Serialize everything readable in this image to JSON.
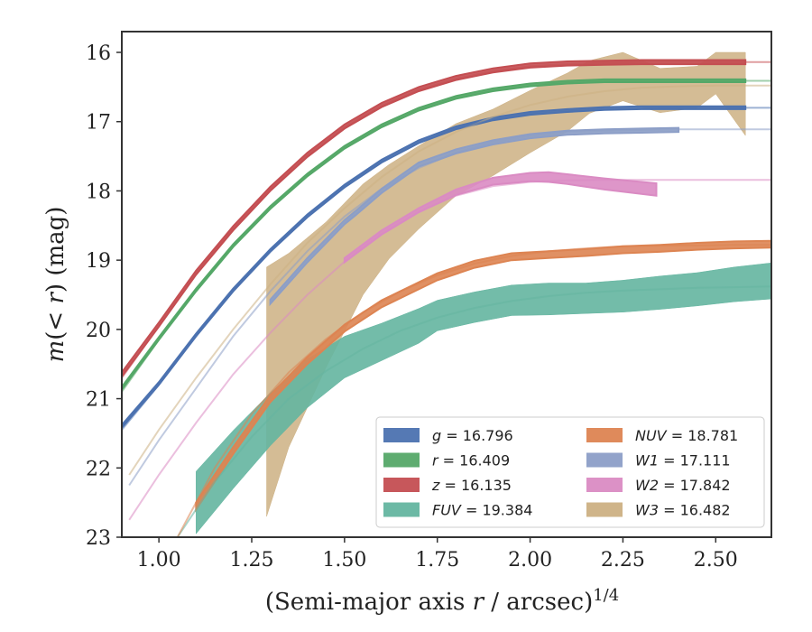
{
  "chart_data": {
    "type": "line",
    "xlabel": "(Semi-major axis r / arcsec)^{1/4}",
    "ylabel": "m(< r) (mag)",
    "xlim": [
      0.9,
      2.65
    ],
    "ylim": [
      23.0,
      15.7
    ],
    "y_inverted": true,
    "x_ticks": [
      "1.00",
      "1.25",
      "1.50",
      "1.75",
      "2.00",
      "2.25",
      "2.50"
    ],
    "y_ticks": [
      "16",
      "17",
      "18",
      "19",
      "20",
      "21",
      "22",
      "23"
    ],
    "grid": false,
    "legend_position": "lower-right",
    "legend": [
      {
        "symbol": "g",
        "value": "16.796"
      },
      {
        "symbol": "r",
        "value": "16.409"
      },
      {
        "symbol": "z",
        "value": "16.135"
      },
      {
        "symbol": "FUV",
        "value": "19.384"
      },
      {
        "symbol": "NUV",
        "value": "18.781"
      },
      {
        "symbol": "W1",
        "value": "17.111"
      },
      {
        "symbol": "W2",
        "value": "17.842"
      },
      {
        "symbol": "W3",
        "value": "16.482"
      }
    ],
    "series": [
      {
        "name": "g = 16.796",
        "color": "#4c72b0",
        "model": {
          "x": [
            0.9,
            1.0,
            1.1,
            1.2,
            1.3,
            1.4,
            1.5,
            1.6,
            1.7,
            1.8,
            1.9,
            2.0,
            2.1,
            2.2,
            2.3,
            2.4,
            2.5,
            2.65
          ],
          "y": [
            21.45,
            20.8,
            20.1,
            19.45,
            18.87,
            18.37,
            17.94,
            17.58,
            17.3,
            17.1,
            16.97,
            16.89,
            16.85,
            16.82,
            16.81,
            16.8,
            16.8,
            16.8
          ]
        },
        "band": {
          "x": [
            0.9,
            1.0,
            1.1,
            1.2,
            1.3,
            1.4,
            1.5,
            1.6,
            1.7,
            1.8,
            1.9,
            2.0,
            2.1,
            2.2,
            2.3,
            2.4,
            2.58
          ],
          "y": [
            21.4,
            20.78,
            20.08,
            19.43,
            18.86,
            18.36,
            17.93,
            17.57,
            17.29,
            17.09,
            16.96,
            16.88,
            16.84,
            16.81,
            16.8,
            16.8,
            16.8
          ],
          "err": [
            0.02,
            0.02,
            0.02,
            0.02,
            0.02,
            0.02,
            0.02,
            0.02,
            0.02,
            0.02,
            0.02,
            0.02,
            0.02,
            0.02,
            0.02,
            0.02,
            0.02
          ]
        }
      },
      {
        "name": "r = 16.409",
        "color": "#55a868",
        "model": {
          "x": [
            0.9,
            1.0,
            1.1,
            1.2,
            1.3,
            1.4,
            1.5,
            1.6,
            1.7,
            1.8,
            1.9,
            2.0,
            2.1,
            2.2,
            2.3,
            2.4,
            2.5,
            2.65
          ],
          "y": [
            20.9,
            20.15,
            19.45,
            18.8,
            18.25,
            17.78,
            17.38,
            17.07,
            16.83,
            16.66,
            16.55,
            16.48,
            16.44,
            16.42,
            16.41,
            16.41,
            16.41,
            16.41
          ]
        },
        "band": {
          "x": [
            0.9,
            1.0,
            1.1,
            1.2,
            1.3,
            1.4,
            1.5,
            1.6,
            1.7,
            1.8,
            1.9,
            2.0,
            2.1,
            2.2,
            2.3,
            2.4,
            2.58
          ],
          "y": [
            20.85,
            20.13,
            19.43,
            18.79,
            18.24,
            17.77,
            17.37,
            17.06,
            16.82,
            16.65,
            16.54,
            16.47,
            16.43,
            16.41,
            16.41,
            16.41,
            16.41
          ],
          "err": [
            0.02,
            0.02,
            0.02,
            0.02,
            0.02,
            0.02,
            0.02,
            0.02,
            0.02,
            0.02,
            0.02,
            0.02,
            0.02,
            0.02,
            0.02,
            0.02,
            0.02
          ]
        }
      },
      {
        "name": "z = 16.135",
        "color": "#c44e52",
        "model": {
          "x": [
            0.9,
            1.0,
            1.1,
            1.2,
            1.3,
            1.4,
            1.5,
            1.6,
            1.7,
            1.8,
            1.9,
            2.0,
            2.1,
            2.2,
            2.3,
            2.4,
            2.5,
            2.65
          ],
          "y": [
            20.7,
            19.95,
            19.2,
            18.55,
            17.98,
            17.49,
            17.08,
            16.77,
            16.54,
            16.38,
            16.27,
            16.2,
            16.17,
            16.15,
            16.14,
            16.14,
            16.14,
            16.14
          ]
        },
        "band": {
          "x": [
            0.9,
            1.0,
            1.1,
            1.2,
            1.3,
            1.4,
            1.5,
            1.6,
            1.7,
            1.8,
            1.9,
            2.0,
            2.1,
            2.2,
            2.3,
            2.4,
            2.58
          ],
          "y": [
            20.65,
            19.93,
            19.18,
            18.54,
            17.97,
            17.48,
            17.07,
            16.76,
            16.53,
            16.37,
            16.26,
            16.19,
            16.16,
            16.15,
            16.14,
            16.14,
            16.14
          ],
          "err": [
            0.03,
            0.03,
            0.03,
            0.03,
            0.03,
            0.03,
            0.03,
            0.03,
            0.03,
            0.03,
            0.03,
            0.03,
            0.03,
            0.03,
            0.03,
            0.03,
            0.03
          ]
        }
      },
      {
        "name": "FUV = 19.384",
        "color": "#64b5a0",
        "model": {
          "x": [
            1.05,
            1.15,
            1.25,
            1.35,
            1.45,
            1.55,
            1.65,
            1.75,
            1.85,
            1.95,
            2.05,
            2.15,
            2.25,
            2.35,
            2.45,
            2.55,
            2.65
          ],
          "y": [
            23.0,
            22.2,
            21.55,
            21.0,
            20.6,
            20.28,
            20.02,
            19.83,
            19.69,
            19.59,
            19.52,
            19.47,
            19.44,
            19.42,
            19.4,
            19.39,
            19.38
          ]
        },
        "band": {
          "x": [
            1.1,
            1.2,
            1.3,
            1.4,
            1.5,
            1.6,
            1.7,
            1.75,
            1.85,
            1.95,
            2.05,
            2.15,
            2.25,
            2.35,
            2.45,
            2.55,
            2.65
          ],
          "y": [
            22.5,
            21.88,
            21.3,
            20.78,
            20.4,
            20.18,
            19.95,
            19.8,
            19.68,
            19.58,
            19.56,
            19.55,
            19.52,
            19.47,
            19.42,
            19.35,
            19.3
          ],
          "err": [
            0.45,
            0.42,
            0.38,
            0.35,
            0.3,
            0.27,
            0.25,
            0.22,
            0.22,
            0.22,
            0.23,
            0.22,
            0.23,
            0.24,
            0.24,
            0.25,
            0.26
          ]
        }
      },
      {
        "name": "NUV = 18.781",
        "color": "#dd8452",
        "model": {
          "x": [
            1.05,
            1.15,
            1.25,
            1.35,
            1.45,
            1.55,
            1.65,
            1.75,
            1.85,
            1.95,
            2.05,
            2.15,
            2.25,
            2.35,
            2.45,
            2.55,
            2.65
          ],
          "y": [
            23.0,
            22.0,
            21.22,
            20.62,
            20.14,
            19.75,
            19.45,
            19.22,
            19.05,
            18.94,
            18.87,
            18.83,
            18.8,
            18.79,
            18.79,
            18.78,
            18.78
          ]
        },
        "band": {
          "x": [
            1.1,
            1.2,
            1.3,
            1.4,
            1.5,
            1.6,
            1.7,
            1.75,
            1.85,
            1.95,
            2.05,
            2.15,
            2.25,
            2.35,
            2.45,
            2.55,
            2.65
          ],
          "y": [
            22.55,
            21.75,
            21.0,
            20.45,
            19.98,
            19.63,
            19.37,
            19.24,
            19.06,
            18.95,
            18.92,
            18.89,
            18.85,
            18.83,
            18.8,
            18.78,
            18.77
          ],
          "err": [
            0.05,
            0.05,
            0.05,
            0.05,
            0.05,
            0.05,
            0.05,
            0.05,
            0.05,
            0.05,
            0.05,
            0.05,
            0.05,
            0.05,
            0.05,
            0.05,
            0.05
          ]
        }
      },
      {
        "name": "W1 = 17.111",
        "color": "#8c9ec7",
        "model": {
          "x": [
            0.92,
            1.0,
            1.1,
            1.2,
            1.3,
            1.4,
            1.5,
            1.6,
            1.7,
            1.8,
            1.9,
            2.0,
            2.1,
            2.2,
            2.3,
            2.4,
            2.5,
            2.65
          ],
          "y": [
            22.25,
            21.6,
            20.85,
            20.1,
            19.45,
            18.87,
            18.37,
            17.97,
            17.67,
            17.45,
            17.3,
            17.2,
            17.15,
            17.13,
            17.12,
            17.11,
            17.11,
            17.11
          ]
        },
        "band": {
          "x": [
            1.3,
            1.4,
            1.5,
            1.53,
            1.6,
            1.7,
            1.8,
            1.9,
            2.0,
            2.1,
            2.2,
            2.3,
            2.4
          ],
          "y": [
            19.6,
            19.0,
            18.45,
            18.32,
            18.0,
            17.62,
            17.43,
            17.3,
            17.21,
            17.16,
            17.14,
            17.13,
            17.12
          ],
          "err": [
            0.03,
            0.03,
            0.03,
            0.03,
            0.03,
            0.03,
            0.03,
            0.03,
            0.03,
            0.03,
            0.03,
            0.03,
            0.03
          ]
        }
      },
      {
        "name": "W2 = 17.842",
        "color": "#da8bc3",
        "model": {
          "x": [
            0.92,
            1.0,
            1.1,
            1.2,
            1.3,
            1.4,
            1.5,
            1.6,
            1.7,
            1.8,
            1.9,
            2.0,
            2.1,
            2.2,
            2.3,
            2.4,
            2.5,
            2.65
          ],
          "y": [
            22.75,
            22.1,
            21.35,
            20.65,
            20.05,
            19.5,
            19.02,
            18.62,
            18.3,
            18.07,
            17.93,
            17.87,
            17.85,
            17.84,
            17.84,
            17.84,
            17.84,
            17.84
          ]
        },
        "band": {
          "x": [
            1.5,
            1.6,
            1.7,
            1.8,
            1.9,
            2.0,
            2.05,
            2.1,
            2.2,
            2.34
          ],
          "y": [
            19.0,
            18.6,
            18.28,
            18.02,
            17.86,
            17.8,
            17.8,
            17.83,
            17.9,
            17.98
          ],
          "err": [
            0.03,
            0.03,
            0.03,
            0.04,
            0.05,
            0.06,
            0.07,
            0.07,
            0.08,
            0.09
          ]
        }
      },
      {
        "name": "W3 = 16.482",
        "color": "#ccb083",
        "model": {
          "x": [
            0.92,
            1.0,
            1.1,
            1.2,
            1.3,
            1.4,
            1.5,
            1.6,
            1.7,
            1.8,
            1.9,
            2.0,
            2.1,
            2.2,
            2.3,
            2.4,
            2.5,
            2.65
          ],
          "y": [
            22.1,
            21.45,
            20.7,
            20.0,
            19.35,
            18.75,
            18.25,
            17.8,
            17.43,
            17.15,
            16.93,
            16.76,
            16.64,
            16.56,
            16.51,
            16.49,
            16.48,
            16.48
          ]
        },
        "band": {
          "x": [
            1.29,
            1.35,
            1.45,
            1.55,
            1.62,
            1.7,
            1.8,
            1.9,
            2.0,
            2.1,
            2.16,
            2.25,
            2.35,
            2.45,
            2.5,
            2.58
          ],
          "y": [
            20.9,
            20.3,
            19.5,
            18.7,
            18.3,
            17.95,
            17.55,
            17.3,
            17.0,
            16.72,
            16.5,
            16.35,
            16.55,
            16.5,
            16.3,
            16.6
          ],
          "err": [
            1.8,
            1.4,
            1.05,
            0.8,
            0.68,
            0.6,
            0.52,
            0.48,
            0.45,
            0.42,
            0.38,
            0.35,
            0.32,
            0.3,
            0.3,
            0.6
          ]
        }
      }
    ]
  }
}
